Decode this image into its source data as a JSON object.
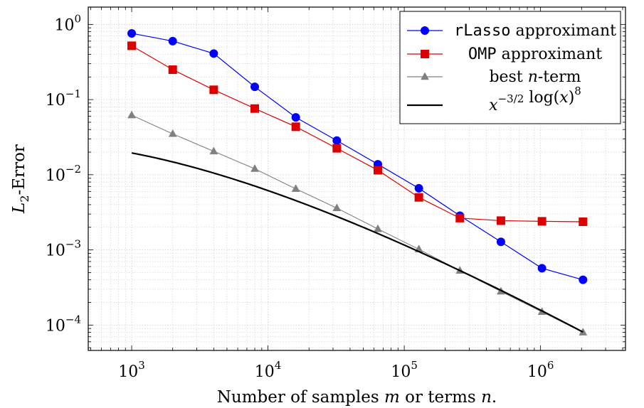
{
  "chart_data": {
    "type": "line",
    "title": "",
    "xlabel": "Number of samples m or terms n.",
    "xlabel_parts": [
      {
        "text": "Number of samples ",
        "italic": false
      },
      {
        "text": "m",
        "italic": true
      },
      {
        "text": " or terms ",
        "italic": false
      },
      {
        "text": "n",
        "italic": true
      },
      {
        "text": ".",
        "italic": false
      }
    ],
    "ylabel": "L2-Error",
    "ylabel_parts": {
      "main": "L",
      "sub": "2",
      "rest": "-Error"
    },
    "x_scale": "log",
    "y_scale": "log",
    "xlim": [
      480,
      4200000
    ],
    "ylim": [
      4.6e-05,
      1.7
    ],
    "x_ticks": [
      {
        "base": "10",
        "exp": "3",
        "value": 1000
      },
      {
        "base": "10",
        "exp": "4",
        "value": 10000
      },
      {
        "base": "10",
        "exp": "5",
        "value": 100000
      },
      {
        "base": "10",
        "exp": "6",
        "value": 1000000
      }
    ],
    "y_ticks": [
      {
        "base": "10",
        "exp": "0",
        "value": 1
      },
      {
        "base": "10",
        "exp": "−1",
        "value": 0.1
      },
      {
        "base": "10",
        "exp": "−2",
        "value": 0.01
      },
      {
        "base": "10",
        "exp": "−3",
        "value": 0.001
      },
      {
        "base": "10",
        "exp": "−4",
        "value": 0.0001
      }
    ],
    "grid": true,
    "legend_position": "top-right",
    "series": [
      {
        "name": "rLasso approximant",
        "legend_parts": [
          {
            "text": "rLasso",
            "mono": true
          },
          {
            "text": " approximant",
            "mono": false
          }
        ],
        "color": "#0000ff",
        "marker": "circle",
        "x": [
          1000,
          2000,
          4000,
          8000,
          16000,
          32000,
          64000,
          128000,
          256000,
          512000,
          1024000,
          2048000
        ],
        "y": [
          0.76,
          0.6,
          0.41,
          0.148,
          0.058,
          0.0285,
          0.0138,
          0.0066,
          0.00285,
          0.00128,
          0.00057,
          0.0004
        ]
      },
      {
        "name": "OMP approximant",
        "legend_parts": [
          {
            "text": "OMP",
            "mono": true
          },
          {
            "text": " approximant",
            "mono": false
          }
        ],
        "color": "#dd0000",
        "marker": "square",
        "x": [
          1000,
          2000,
          4000,
          8000,
          16000,
          32000,
          64000,
          128000,
          256000,
          512000,
          1024000,
          2048000
        ],
        "y": [
          0.52,
          0.25,
          0.135,
          0.076,
          0.0435,
          0.0225,
          0.0115,
          0.005,
          0.00265,
          0.00245,
          0.0024,
          0.00237
        ]
      },
      {
        "name": "best n-term",
        "legend_parts": [
          {
            "text": "best ",
            "mono": false
          },
          {
            "text": "n",
            "mono": false,
            "italic": true
          },
          {
            "text": "-term",
            "mono": false
          }
        ],
        "color": "#808080",
        "marker": "triangle",
        "x": [
          1000,
          2000,
          4000,
          8000,
          16000,
          32000,
          64000,
          128000,
          256000,
          512000,
          1024000,
          2048000
        ],
        "y": [
          0.062,
          0.035,
          0.0205,
          0.012,
          0.0065,
          0.0036,
          0.0019,
          0.00102,
          0.00053,
          0.00028,
          0.00015,
          8e-05
        ]
      },
      {
        "name": "x^{-3/2} log(x)^8",
        "legend_parts": [
          {
            "text": "x",
            "italic": true
          },
          {
            "text": "−3/2",
            "sup": true
          },
          {
            "text": " log(",
            "italic": false
          },
          {
            "text": "x",
            "italic": true
          },
          {
            "text": ")",
            "italic": false
          },
          {
            "text": "8",
            "sup": true
          }
        ],
        "color": "#000000",
        "marker": "none",
        "function": "reference_curve",
        "x": [
          1000,
          2048000
        ],
        "y": [
          0.0195,
          7.96e-05
        ]
      }
    ]
  }
}
